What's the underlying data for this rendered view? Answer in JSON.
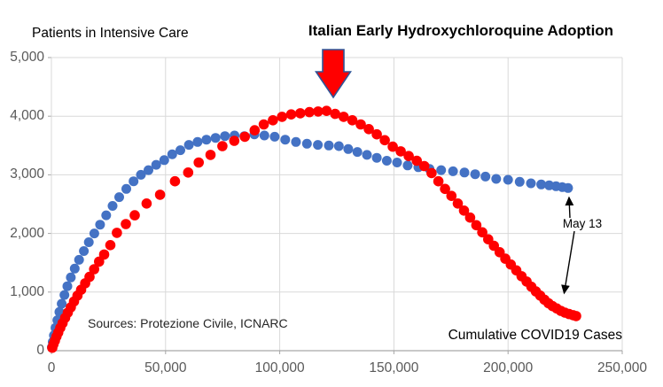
{
  "chart_data": {
    "type": "scatter",
    "title": "Italian Early Hydroxychloroquine Adoption",
    "y_axis_title": "Patients in Intensive Care",
    "x_axis_title": "Cumulative COVID19 Cases",
    "source_note": "Sources: Protezione Civile, ICNARC",
    "date_annotation": "May 13",
    "xlim": [
      0,
      250000
    ],
    "ylim": [
      0,
      5000
    ],
    "x_ticks": [
      0,
      50000,
      100000,
      150000,
      200000,
      250000
    ],
    "x_tick_labels": [
      "0",
      "50,000",
      "100,000",
      "150,000",
      "200,000",
      "250,000"
    ],
    "y_ticks": [
      0,
      1000,
      2000,
      3000,
      4000,
      5000
    ],
    "y_tick_labels": [
      "0",
      "1,000",
      "2,000",
      "3,000",
      "4,000",
      "5,000"
    ],
    "grid": true,
    "legend_position": "none",
    "colors": {
      "red_series": "#FF0000",
      "blue_series": "#4472C4",
      "arrow_fill": "#FF0000",
      "arrow_border": "#2F5597",
      "gridline": "#D9D9D9",
      "axis_line": "#A6A6A6",
      "tick_label": "#595959",
      "annotation_arrow": "#000000"
    },
    "series": [
      {
        "name": "blue-dots",
        "color": "#4472C4",
        "marker_radius": 5.5,
        "points": [
          [
            200,
            60
          ],
          [
            600,
            150
          ],
          [
            1100,
            260
          ],
          [
            1800,
            390
          ],
          [
            2600,
            520
          ],
          [
            3500,
            660
          ],
          [
            4500,
            800
          ],
          [
            5700,
            950
          ],
          [
            7000,
            1100
          ],
          [
            8500,
            1250
          ],
          [
            10200,
            1400
          ],
          [
            12100,
            1550
          ],
          [
            14200,
            1700
          ],
          [
            16400,
            1850
          ],
          [
            18800,
            2000
          ],
          [
            21300,
            2150
          ],
          [
            24000,
            2310
          ],
          [
            26800,
            2470
          ],
          [
            29700,
            2620
          ],
          [
            32800,
            2760
          ],
          [
            36000,
            2890
          ],
          [
            39200,
            3000
          ],
          [
            42500,
            3080
          ],
          [
            45900,
            3170
          ],
          [
            49400,
            3250
          ],
          [
            52900,
            3350
          ],
          [
            56500,
            3420
          ],
          [
            60200,
            3510
          ],
          [
            64000,
            3560
          ],
          [
            67900,
            3600
          ],
          [
            71900,
            3630
          ],
          [
            76000,
            3660
          ],
          [
            80200,
            3670
          ],
          [
            84500,
            3660
          ],
          [
            88900,
            3690
          ],
          [
            93300,
            3670
          ],
          [
            97800,
            3650
          ],
          [
            102400,
            3600
          ],
          [
            107100,
            3560
          ],
          [
            111900,
            3530
          ],
          [
            116700,
            3510
          ],
          [
            121500,
            3500
          ],
          [
            125900,
            3490
          ],
          [
            130000,
            3440
          ],
          [
            134000,
            3390
          ],
          [
            138200,
            3340
          ],
          [
            142500,
            3290
          ],
          [
            146900,
            3240
          ],
          [
            151400,
            3210
          ],
          [
            156000,
            3160
          ],
          [
            160700,
            3130
          ],
          [
            165600,
            3100
          ],
          [
            170700,
            3080
          ],
          [
            175900,
            3060
          ],
          [
            180900,
            3040
          ],
          [
            185600,
            3010
          ],
          [
            190100,
            2970
          ],
          [
            194800,
            2930
          ],
          [
            200000,
            2915
          ],
          [
            205100,
            2880
          ],
          [
            210000,
            2855
          ],
          [
            214500,
            2835
          ],
          [
            218000,
            2820
          ],
          [
            221000,
            2805
          ],
          [
            223800,
            2790
          ],
          [
            226300,
            2775
          ]
        ]
      },
      {
        "name": "red-dots",
        "color": "#FF0000",
        "marker_radius": 5.8,
        "points": [
          [
            400,
            50
          ],
          [
            900,
            110
          ],
          [
            1500,
            170
          ],
          [
            2200,
            240
          ],
          [
            3000,
            310
          ],
          [
            3900,
            390
          ],
          [
            4900,
            470
          ],
          [
            6000,
            560
          ],
          [
            7200,
            650
          ],
          [
            8500,
            740
          ],
          [
            9900,
            840
          ],
          [
            11400,
            940
          ],
          [
            13000,
            1040
          ],
          [
            14800,
            1150
          ],
          [
            16700,
            1260
          ],
          [
            18700,
            1390
          ],
          [
            20900,
            1520
          ],
          [
            23100,
            1640
          ],
          [
            25800,
            1800
          ],
          [
            28700,
            2010
          ],
          [
            32600,
            2160
          ],
          [
            36500,
            2310
          ],
          [
            41700,
            2510
          ],
          [
            47600,
            2660
          ],
          [
            54100,
            2890
          ],
          [
            59900,
            3040
          ],
          [
            64500,
            3210
          ],
          [
            69700,
            3340
          ],
          [
            74900,
            3490
          ],
          [
            80100,
            3580
          ],
          [
            84700,
            3650
          ],
          [
            89000,
            3760
          ],
          [
            93000,
            3860
          ],
          [
            97000,
            3930
          ],
          [
            101000,
            3990
          ],
          [
            105000,
            4030
          ],
          [
            109000,
            4050
          ],
          [
            113000,
            4070
          ],
          [
            116800,
            4080
          ],
          [
            120500,
            4090
          ],
          [
            124300,
            4040
          ],
          [
            128000,
            3990
          ],
          [
            131800,
            3930
          ],
          [
            135500,
            3860
          ],
          [
            139000,
            3780
          ],
          [
            142500,
            3690
          ],
          [
            146000,
            3590
          ],
          [
            149500,
            3480
          ],
          [
            153000,
            3400
          ],
          [
            156500,
            3320
          ],
          [
            160000,
            3240
          ],
          [
            163300,
            3150
          ],
          [
            166500,
            3030
          ],
          [
            169500,
            2890
          ],
          [
            172400,
            2760
          ],
          [
            175200,
            2640
          ],
          [
            178000,
            2510
          ],
          [
            180700,
            2390
          ],
          [
            183400,
            2270
          ],
          [
            186100,
            2140
          ],
          [
            188700,
            2020
          ],
          [
            191300,
            1900
          ],
          [
            193800,
            1790
          ],
          [
            196300,
            1680
          ],
          [
            198800,
            1570
          ],
          [
            201200,
            1470
          ],
          [
            203600,
            1370
          ],
          [
            205900,
            1270
          ],
          [
            208100,
            1180
          ],
          [
            210200,
            1090
          ],
          [
            212200,
            1010
          ],
          [
            214100,
            940
          ],
          [
            215900,
            870
          ],
          [
            217700,
            810
          ],
          [
            219500,
            760
          ],
          [
            221300,
            720
          ],
          [
            223100,
            680
          ],
          [
            224900,
            650
          ],
          [
            226700,
            625
          ],
          [
            228500,
            605
          ],
          [
            229800,
            590
          ]
        ]
      }
    ]
  }
}
